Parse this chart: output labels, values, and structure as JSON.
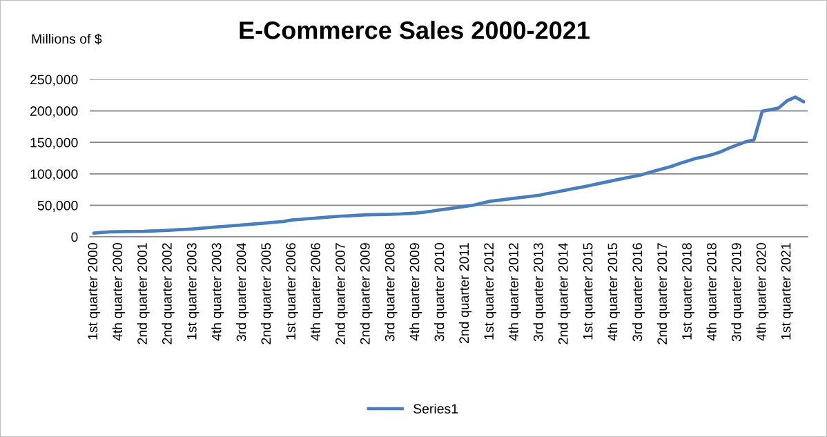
{
  "chart_data": {
    "type": "line",
    "title": "E-Commerce Sales 2000-2021",
    "ylabel": "Millions of $",
    "categories": [
      "1st quarter 2000",
      null,
      null,
      "4th quarter 2000",
      null,
      null,
      "2nd quarter 2001",
      null,
      null,
      "2nd quarter 2002",
      null,
      null,
      "1st quarter 2003",
      null,
      null,
      "4th quarter 2003",
      null,
      null,
      "3rd quarter 2004",
      null,
      null,
      "2nd quarter 2005",
      null,
      null,
      "1st quarter 2006",
      null,
      null,
      "4th quarter 2006",
      null,
      null,
      "2nd quarter 2007",
      null,
      null,
      "2nd quarter 2009",
      null,
      null,
      "3rd quarter 2008",
      null,
      null,
      "4th quarter 2009",
      null,
      null,
      "3rd quarter 2010",
      null,
      null,
      "2nd quarter 2011",
      null,
      null,
      "1st quarter 2012",
      null,
      null,
      "4th quarter 2012",
      null,
      null,
      "3rd quarter 2013",
      null,
      null,
      "2nd quarter 2014",
      null,
      null,
      "1st quarter 2015",
      null,
      null,
      "4th quarter 2015",
      null,
      null,
      "3rd quarter 2016",
      null,
      null,
      "2nd quarter 2017",
      null,
      null,
      "1st quarter 2018",
      null,
      null,
      "4th quarter 2018",
      null,
      null,
      "3rd quarter 2019",
      null,
      null,
      "4th quarter 2020",
      null,
      null,
      "1st quarter 2021",
      null,
      null
    ],
    "series": [
      {
        "name": "Series1",
        "color": "#4a7ebb",
        "values": [
          5800,
          6900,
          7800,
          8100,
          8300,
          8500,
          8600,
          9100,
          9600,
          10200,
          11000,
          11800,
          12500,
          13500,
          14600,
          15700,
          16700,
          17800,
          18800,
          19900,
          20900,
          22000,
          23300,
          24300,
          26700,
          27700,
          28800,
          29800,
          30900,
          32000,
          32900,
          33400,
          34100,
          34900,
          35300,
          35600,
          35700,
          36200,
          36900,
          37600,
          39000,
          40800,
          42900,
          44600,
          46500,
          48300,
          50200,
          53500,
          56300,
          58000,
          59600,
          61200,
          62800,
          64400,
          66100,
          68800,
          71000,
          73600,
          76200,
          78600,
          81200,
          84000,
          86700,
          89500,
          92200,
          94800,
          97400,
          100800,
          104600,
          108300,
          111800,
          116500,
          120500,
          124600,
          127300,
          130800,
          135200,
          141000,
          146100,
          150900,
          154100,
          199400,
          202000,
          204700,
          216000,
          222000,
          214500
        ]
      }
    ],
    "ylim": [
      0,
      250000
    ],
    "yticks": [
      0,
      {
        "value": 50000,
        "label": "50,000"
      },
      {
        "value": 100000,
        "label": "100,000"
      },
      {
        "value": 150000,
        "label": "150,000"
      },
      {
        "value": 200000,
        "label": "200,000"
      },
      {
        "value": 250000,
        "label": "250,000"
      }
    ],
    "grid": "y",
    "legend": "bottom",
    "marker": "none",
    "line_style": "solid"
  }
}
